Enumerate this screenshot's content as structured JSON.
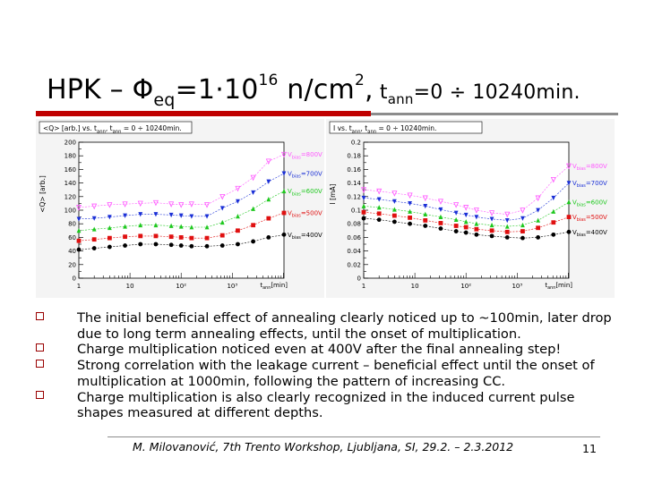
{
  "title": {
    "prefix": "HPK – Φ",
    "phi_sub": "eq",
    "mid": "=1·10",
    "exp": "16",
    "unit": " n/cm",
    "unit_exp": "2",
    "comma": ",",
    "t": " t",
    "t_sub": "ann",
    "range": "=0 ÷ 10240min."
  },
  "colors": {
    "accent_red": "#c00000",
    "v800": "#ff55ff",
    "v700": "#1a2fd6",
    "v600": "#1ec81e",
    "v500": "#e01010",
    "v400": "#000000"
  },
  "chart_data": [
    {
      "type": "line",
      "title": "<Q> [arb.] vs. tann, tann = 0 ÷ 10240min.",
      "title_parts": {
        "pre": "<Q> [arb.] vs. t",
        "s1": "ann",
        "mid": ", t",
        "s2": "ann",
        "post": " = 0 ÷ 10240min."
      },
      "ylabel": "<Q> [arb.]",
      "xlabel": "tann[min]",
      "xlabel_parts": {
        "t": "t",
        "sub": "ann",
        "unit": "[min]"
      },
      "xscale": "log",
      "xlim": [
        1,
        10240
      ],
      "ylim": [
        0,
        200
      ],
      "yticks": [
        "0",
        "20",
        "40",
        "60",
        "80",
        "100",
        "120",
        "140",
        "160",
        "180",
        "200"
      ],
      "xtick_labels": [
        {
          "x": 1,
          "text": "1"
        },
        {
          "x": 10,
          "text": "10"
        },
        {
          "x": 100,
          "text": "10²"
        },
        {
          "x": 1000,
          "text": "10³"
        }
      ],
      "x": [
        1,
        2,
        4,
        8,
        16,
        32,
        64,
        100,
        160,
        320,
        640,
        1280,
        2560,
        5120,
        10240
      ],
      "series": [
        {
          "name": "Vbias=800V",
          "label_v": "V",
          "label_sub": "bias",
          "label_val": "=800V",
          "color": "#ff55ff",
          "marker": "triangle-down-open",
          "values": [
            104,
            106,
            108,
            109,
            110,
            111,
            109,
            108,
            109,
            108,
            120,
            132,
            148,
            172,
            182
          ]
        },
        {
          "name": "Vbias=700V",
          "label_v": "V",
          "label_sub": "bias",
          "label_val": "=700V",
          "color": "#1a2fd6",
          "marker": "triangle-down",
          "values": [
            87,
            88,
            90,
            92,
            94,
            94,
            93,
            92,
            91,
            91,
            103,
            113,
            126,
            142,
            154
          ]
        },
        {
          "name": "Vbias=600V",
          "label_v": "V",
          "label_sub": "bias",
          "label_val": "=600V",
          "color": "#1ec81e",
          "marker": "triangle-up",
          "values": [
            70,
            72,
            74,
            76,
            78,
            78,
            77,
            76,
            75,
            75,
            82,
            91,
            102,
            116,
            128
          ]
        },
        {
          "name": "Vbias=500V",
          "label_v": "V",
          "label_sub": "bias",
          "label_val": "=500V",
          "color": "#e01010",
          "marker": "square",
          "values": [
            55,
            57,
            59,
            61,
            62,
            62,
            61,
            60,
            59,
            59,
            63,
            70,
            78,
            88,
            96
          ]
        },
        {
          "name": "Vbias=400V",
          "label_v": "V",
          "label_sub": "bias",
          "label_val": "=400V",
          "color": "#000000",
          "marker": "circle",
          "values": [
            42,
            44,
            46,
            48,
            50,
            50,
            49,
            48,
            47,
            47,
            48,
            50,
            54,
            60,
            64
          ]
        }
      ]
    },
    {
      "type": "line",
      "title": "I vs. tann, tann = 0 ÷ 10240min.",
      "title_parts": {
        "pre": "I vs. t",
        "s1": "ann",
        "mid": ", t",
        "s2": "ann",
        "post": " = 0 ÷ 10240min."
      },
      "ylabel": "I [mA]",
      "xlabel": "tann[min]",
      "xlabel_parts": {
        "t": "t",
        "sub": "ann",
        "unit": "[min]"
      },
      "xscale": "log",
      "xlim": [
        1,
        10240
      ],
      "ylim": [
        0,
        0.2
      ],
      "yticks": [
        "0",
        "0.02",
        "0.04",
        "0.06",
        "0.08",
        "0.1",
        "0.12",
        "0.14",
        "0.16",
        "0.18",
        "0.2"
      ],
      "xtick_labels": [
        {
          "x": 1,
          "text": "1"
        },
        {
          "x": 10,
          "text": "10"
        },
        {
          "x": 100,
          "text": "10²"
        },
        {
          "x": 1000,
          "text": "10³"
        }
      ],
      "x": [
        1,
        2,
        4,
        8,
        16,
        32,
        64,
        100,
        160,
        320,
        640,
        1280,
        2560,
        5120,
        10240
      ],
      "series": [
        {
          "name": "Vbias=800V",
          "label_v": "V",
          "label_sub": "bias",
          "label_val": "=800V",
          "color": "#ff55ff",
          "marker": "triangle-down-open",
          "values": [
            0.13,
            0.128,
            0.125,
            0.122,
            0.118,
            0.113,
            0.108,
            0.104,
            0.1,
            0.096,
            0.094,
            0.1,
            0.118,
            0.145,
            0.165
          ]
        },
        {
          "name": "Vbias=700V",
          "label_v": "V",
          "label_sub": "bias",
          "label_val": "=700V",
          "color": "#1a2fd6",
          "marker": "triangle-down",
          "values": [
            0.118,
            0.116,
            0.113,
            0.11,
            0.106,
            0.101,
            0.096,
            0.093,
            0.09,
            0.087,
            0.085,
            0.088,
            0.1,
            0.118,
            0.14
          ]
        },
        {
          "name": "Vbias=600V",
          "label_v": "V",
          "label_sub": "bias",
          "label_val": "=600V",
          "color": "#1ec81e",
          "marker": "triangle-up",
          "values": [
            0.106,
            0.104,
            0.101,
            0.098,
            0.094,
            0.09,
            0.086,
            0.083,
            0.08,
            0.078,
            0.076,
            0.078,
            0.085,
            0.098,
            0.112
          ]
        },
        {
          "name": "Vbias=500V",
          "label_v": "V",
          "label_sub": "bias",
          "label_val": "=500V",
          "color": "#e01010",
          "marker": "square",
          "values": [
            0.097,
            0.095,
            0.092,
            0.089,
            0.085,
            0.081,
            0.077,
            0.075,
            0.072,
            0.07,
            0.068,
            0.069,
            0.074,
            0.082,
            0.09
          ]
        },
        {
          "name": "Vbias=400V",
          "label_v": "V",
          "label_sub": "bias",
          "label_val": "=400V",
          "color": "#000000",
          "marker": "circle",
          "values": [
            0.088,
            0.086,
            0.083,
            0.08,
            0.077,
            0.073,
            0.069,
            0.067,
            0.064,
            0.062,
            0.06,
            0.059,
            0.06,
            0.064,
            0.068
          ]
        }
      ]
    }
  ],
  "bullets": [
    "The initial beneficial effect of annealing clearly noticed up to ~100min, later drop due to long term annealing effects, until the onset of multiplication.",
    "Charge multiplication noticed even at 400V after the final annealing step!",
    "Strong correlation with the leakage current – beneficial effect until the onset of multiplication at 1000min, following the pattern of increasing CC.",
    "Charge multiplication is also clearly recognized in the induced current pulse shapes measured at different depths."
  ],
  "footer": {
    "citation": "M. Milovanović, 7th Trento Workshop, Ljubljana, SI, 29.2. – 2.3.2012",
    "page_number": "11"
  }
}
